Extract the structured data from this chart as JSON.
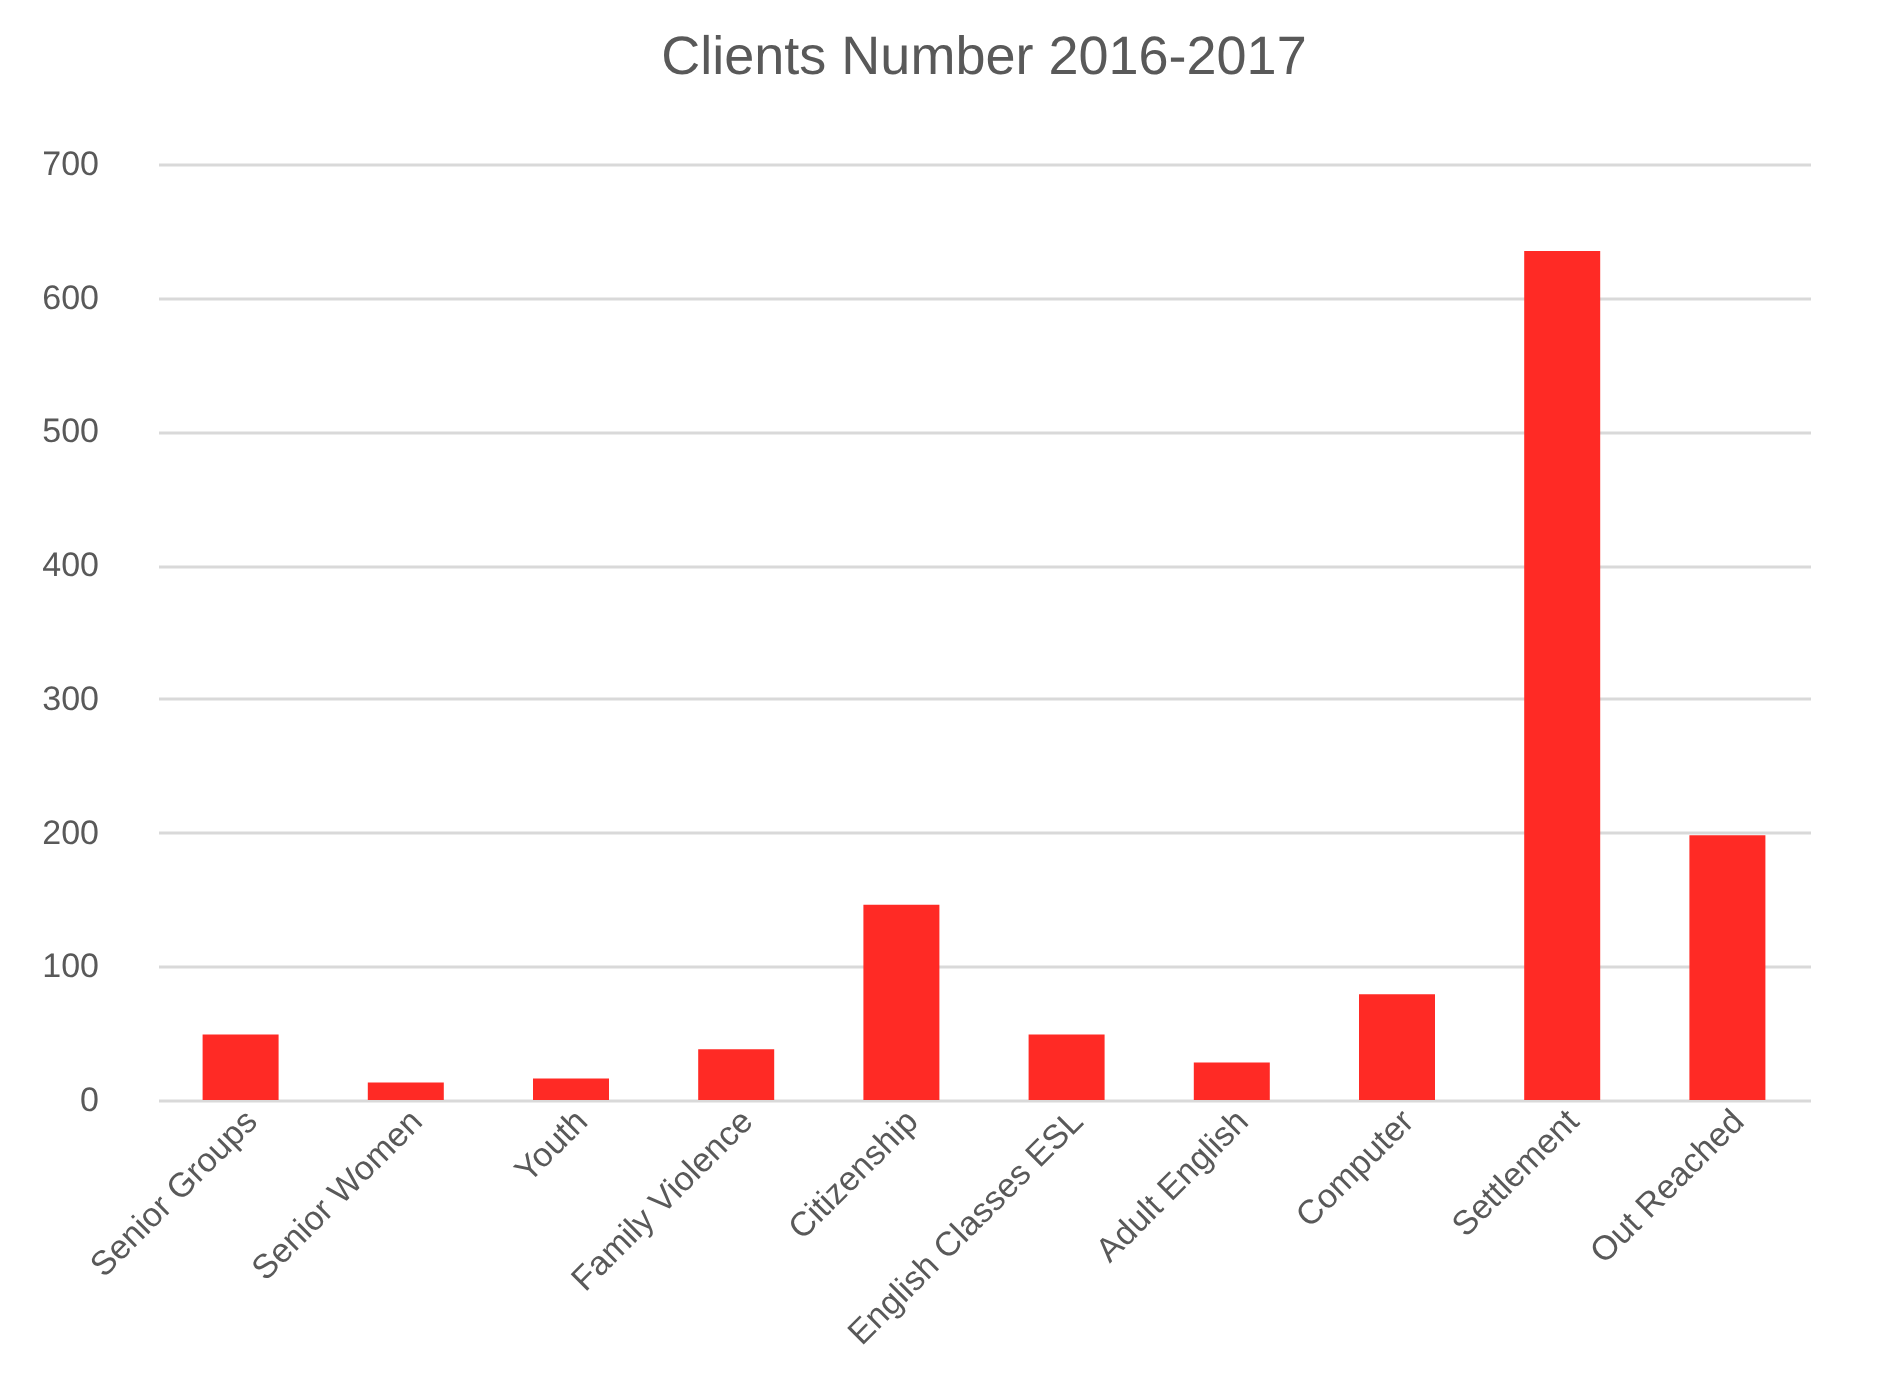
{
  "chart_data": {
    "type": "bar",
    "title": "Clients Number 2016-2017",
    "categories": [
      "Senior Groups",
      "Senior Women",
      "Youth",
      "Family Violence",
      "Citizenship",
      "English Classes ESL",
      "Adult English",
      "Computer",
      "Settlement",
      "Out Reached"
    ],
    "values": [
      49,
      13,
      16,
      38,
      146,
      49,
      28,
      79,
      635,
      198
    ],
    "color": "#ff2a25",
    "ylim": [
      0,
      700
    ],
    "yticks": [
      0,
      100,
      200,
      300,
      400,
      500,
      600,
      700
    ],
    "grid": "y"
  }
}
